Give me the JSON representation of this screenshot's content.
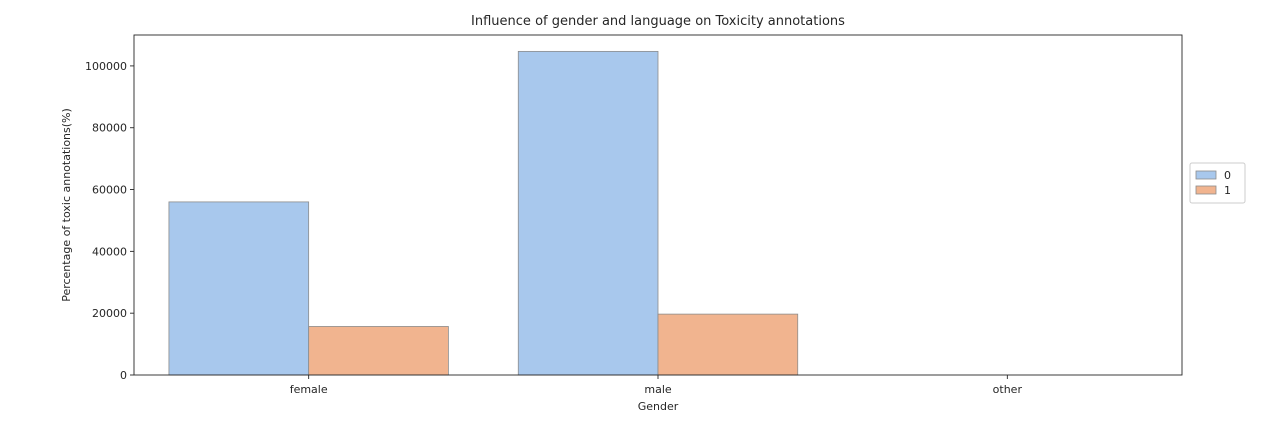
{
  "chart_data": {
    "type": "bar",
    "title": "Influence of gender and language on Toxicity annotations",
    "xlabel": "Gender",
    "ylabel": "Percentage of toxic annotations(%)",
    "categories": [
      "female",
      "male",
      "other"
    ],
    "series": [
      {
        "name": "0",
        "color": "#a8c8ed",
        "values": [
          56000,
          104700,
          0
        ]
      },
      {
        "name": "1",
        "color": "#f1b48f",
        "values": [
          15700,
          19700,
          0
        ]
      }
    ],
    "ylim": [
      0,
      110000
    ],
    "yticks": [
      0,
      20000,
      40000,
      60000,
      80000,
      100000
    ],
    "ytick_labels": [
      "0",
      "20000",
      "40000",
      "60000",
      "80000",
      "100000"
    ],
    "grid": false,
    "legend_placement": "right"
  }
}
